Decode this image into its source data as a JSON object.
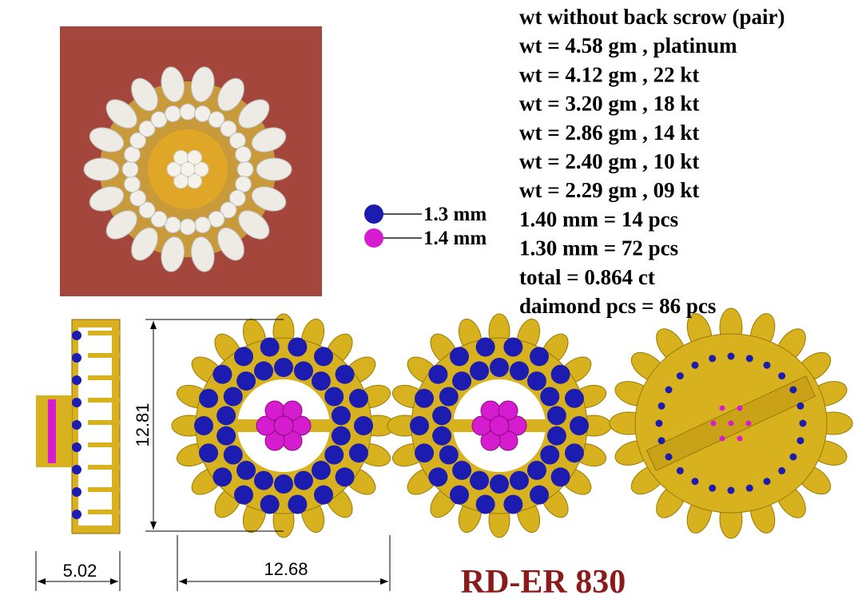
{
  "specs": [
    "wt without back scrow (pair)",
    "wt = 4.58 gm , platinum",
    "wt = 4.12 gm , 22 kt",
    "wt = 3.20 gm , 18 kt",
    "wt = 2.86 gm , 14 kt",
    "wt = 2.40 gm , 10 kt",
    "wt = 2.29 gm , 09 kt",
    "1.40 mm = 14 pcs",
    "1.30 mm = 72 pcs",
    "total = 0.864 ct",
    "daimond pcs = 86 pcs"
  ],
  "legend": [
    {
      "label": "1.3 mm",
      "color": "#1c1cb0"
    },
    {
      "label": "1.4 mm",
      "color": "#d61ccf"
    }
  ],
  "dimensions": {
    "side_width": "5.02",
    "height": "12.81",
    "width": "12.68"
  },
  "code": "RD-ER 830"
}
